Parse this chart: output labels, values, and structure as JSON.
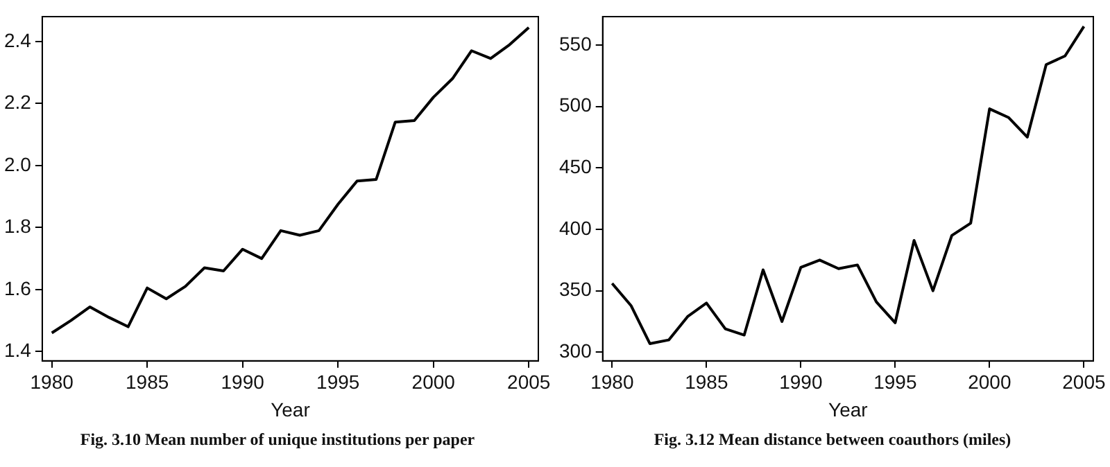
{
  "chart_data": [
    {
      "type": "line",
      "title": "Fig. 3.10 Mean number of unique institutions per paper",
      "xlabel": "Year",
      "color": "#000000",
      "x": [
        1980,
        1981,
        1982,
        1983,
        1984,
        1985,
        1986,
        1987,
        1988,
        1989,
        1990,
        1991,
        1992,
        1993,
        1994,
        1995,
        1996,
        1997,
        1998,
        1999,
        2000,
        2001,
        2002,
        2003,
        2004,
        2005
      ],
      "values": [
        1.46,
        1.5,
        1.544,
        1.51,
        1.48,
        1.605,
        1.57,
        1.61,
        1.67,
        1.66,
        1.73,
        1.7,
        1.79,
        1.775,
        1.79,
        1.875,
        1.95,
        1.955,
        2.14,
        2.145,
        2.22,
        2.28,
        2.37,
        2.345,
        2.39,
        2.445
      ],
      "xlim": [
        1979.5,
        2005.5
      ],
      "xticks": [
        1980,
        1985,
        1990,
        1995,
        2000,
        2005
      ],
      "ylim": [
        1.37,
        2.48
      ],
      "yticks": [
        {
          "value": 1.4,
          "label": "1.4"
        },
        {
          "value": 1.6,
          "label": "1.6"
        },
        {
          "value": 1.8,
          "label": "1.8"
        },
        {
          "value": 2.0,
          "label": "2.0"
        },
        {
          "value": 2.2,
          "label": "2.2"
        },
        {
          "value": 2.4,
          "label": "2.4"
        }
      ]
    },
    {
      "type": "line",
      "title": "Fig. 3.12 Mean distance between coauthors (miles)",
      "xlabel": "Year",
      "color": "#000000",
      "x": [
        1980,
        1981,
        1982,
        1983,
        1984,
        1985,
        1986,
        1987,
        1988,
        1989,
        1990,
        1991,
        1992,
        1993,
        1994,
        1995,
        1996,
        1997,
        1998,
        1999,
        2000,
        2001,
        2002,
        2003,
        2004,
        2005
      ],
      "values": [
        356,
        338,
        307,
        310,
        329,
        340,
        319,
        314,
        367,
        325,
        369,
        375,
        368,
        371,
        341,
        324,
        391,
        350,
        395,
        405,
        498,
        491,
        475,
        534,
        541,
        565
      ],
      "xlim": [
        1979.5,
        2005.5
      ],
      "xticks": [
        1980,
        1985,
        1990,
        1995,
        2000,
        2005
      ],
      "ylim": [
        293,
        573
      ],
      "yticks": [
        300,
        350,
        400,
        450,
        500,
        550
      ]
    }
  ]
}
